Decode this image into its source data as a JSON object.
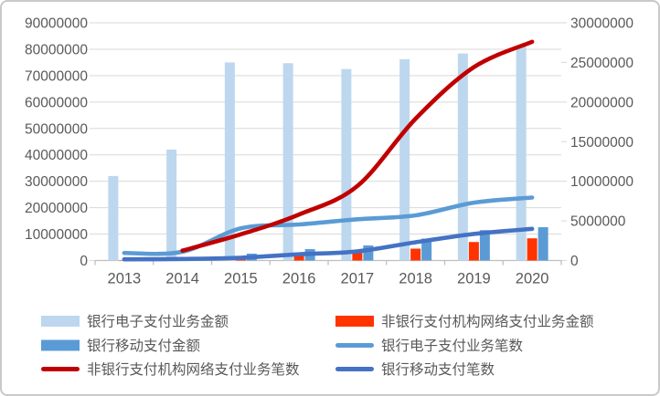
{
  "chart_data": {
    "type": "combo_bar_line",
    "title": "",
    "categories": [
      "2013",
      "2014",
      "2015",
      "2016",
      "2017",
      "2018",
      "2019",
      "2020"
    ],
    "left_axis": {
      "min": 0,
      "max": 90000000,
      "step": 10000000,
      "tick_labels": [
        "0",
        "10000000",
        "20000000",
        "30000000",
        "40000000",
        "50000000",
        "60000000",
        "70000000",
        "80000000",
        "90000000"
      ]
    },
    "right_axis": {
      "min": 0,
      "max": 30000000,
      "step": 5000000,
      "tick_labels": [
        "0",
        "5000000",
        "10000000",
        "15000000",
        "20000000",
        "25000000",
        "30000000"
      ]
    },
    "grid": "horizontal",
    "series": [
      {
        "name": "银行电子支付业务金额",
        "slug": "bank-epay-amount",
        "type": "bar",
        "axis": "left",
        "color": "#BDD7EE",
        "values": [
          32000000,
          42000000,
          75000000,
          74700000,
          72500000,
          76200000,
          78400000,
          81000000
        ]
      },
      {
        "name": "非银行支付机构网络支付业务金额",
        "slug": "nonbank-netpay-amount",
        "type": "bar",
        "axis": "left",
        "color": "#FF3300",
        "values": [
          100000,
          250000,
          1000000,
          2000000,
          3100000,
          4500000,
          7000000,
          8400000
        ]
      },
      {
        "name": "银行移动支付金额",
        "slug": "bank-mobile-amount",
        "type": "bar",
        "axis": "left",
        "color": "#5B9BD5",
        "values": [
          200000,
          400000,
          2600000,
          4300000,
          5700000,
          8300000,
          11500000,
          12600000
        ]
      },
      {
        "name": "银行电子支付业务笔数",
        "slug": "bank-epay-count",
        "type": "line",
        "axis": "right",
        "color": "#5B9BD5",
        "values": [
          950000,
          1100000,
          4050000,
          4550000,
          5200000,
          5700000,
          7300000,
          7950000
        ]
      },
      {
        "name": "非银行支付机构网络支付业务笔数",
        "slug": "nonbank-netpay-count",
        "type": "line",
        "axis": "right",
        "color": "#C00000",
        "values": [
          null,
          1250000,
          3300000,
          5800000,
          9400000,
          17900000,
          24400000,
          27600000
        ]
      },
      {
        "name": "银行移动支付笔数",
        "slug": "bank-mobile-count",
        "type": "line",
        "axis": "right",
        "color": "#4472C4",
        "values": [
          150000,
          200000,
          350000,
          780000,
          1150000,
          2300000,
          3350000,
          4000000
        ]
      }
    ],
    "legend": {
      "position": "bottom",
      "columns": 2,
      "rows": [
        [
          0,
          1
        ],
        [
          2,
          3
        ],
        [
          4,
          5
        ]
      ]
    },
    "style": {
      "text_color": "#595959",
      "grid_color": "#D9D9D9",
      "axis_line_color": "#BFBFBF",
      "background": "#FFFFFF"
    }
  }
}
